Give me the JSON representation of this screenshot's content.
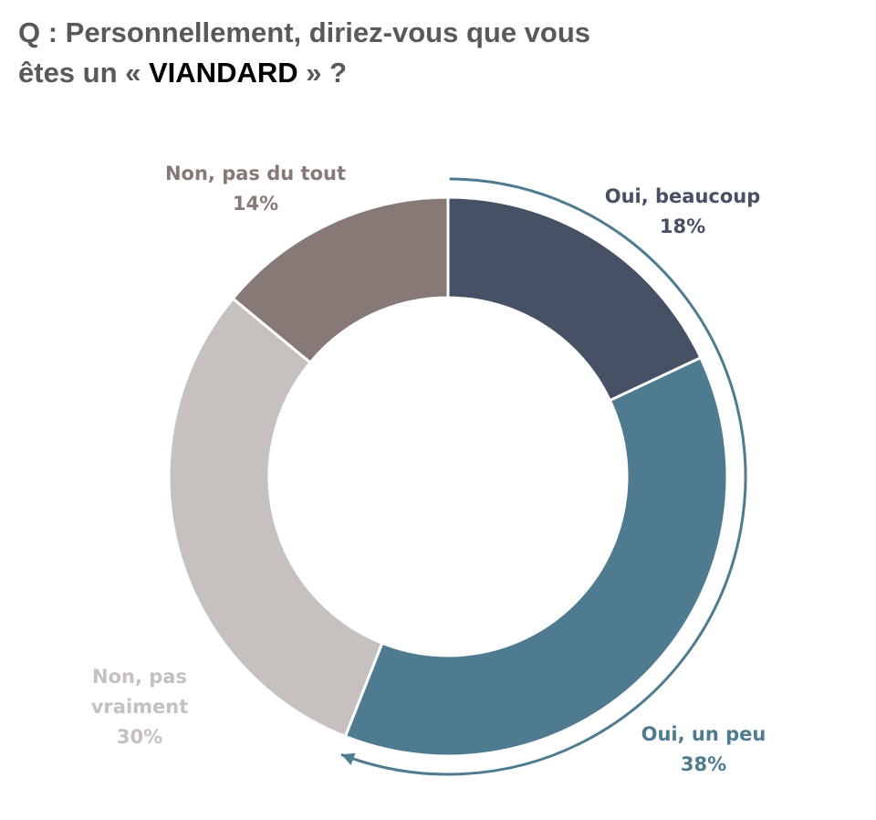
{
  "title": {
    "line1": "Q : Personnellement, diriez-vous que vous",
    "line2_prefix": "êtes un « ",
    "line2_emph": "VIANDARD",
    "line2_suffix": " » ?"
  },
  "chart_data": {
    "type": "pie",
    "donut": true,
    "slices": [
      {
        "label_lines": [
          "Oui, beaucoup"
        ],
        "value": 18,
        "value_label": "18%",
        "color": "#465166"
      },
      {
        "label_lines": [
          "Oui, un peu"
        ],
        "value": 38,
        "value_label": "38%",
        "color": "#4e7b8f"
      },
      {
        "label_lines": [
          "Non, pas",
          "vraiment"
        ],
        "value": 30,
        "value_label": "30%",
        "color": "#c6c1be"
      },
      {
        "label_lines": [
          "Non, pas du tout"
        ],
        "value": 14,
        "value_label": "14%",
        "color": "#877a76"
      }
    ],
    "bracket_color": "#4e7b8f",
    "start": "12 o'clock",
    "direction": "clockwise"
  }
}
